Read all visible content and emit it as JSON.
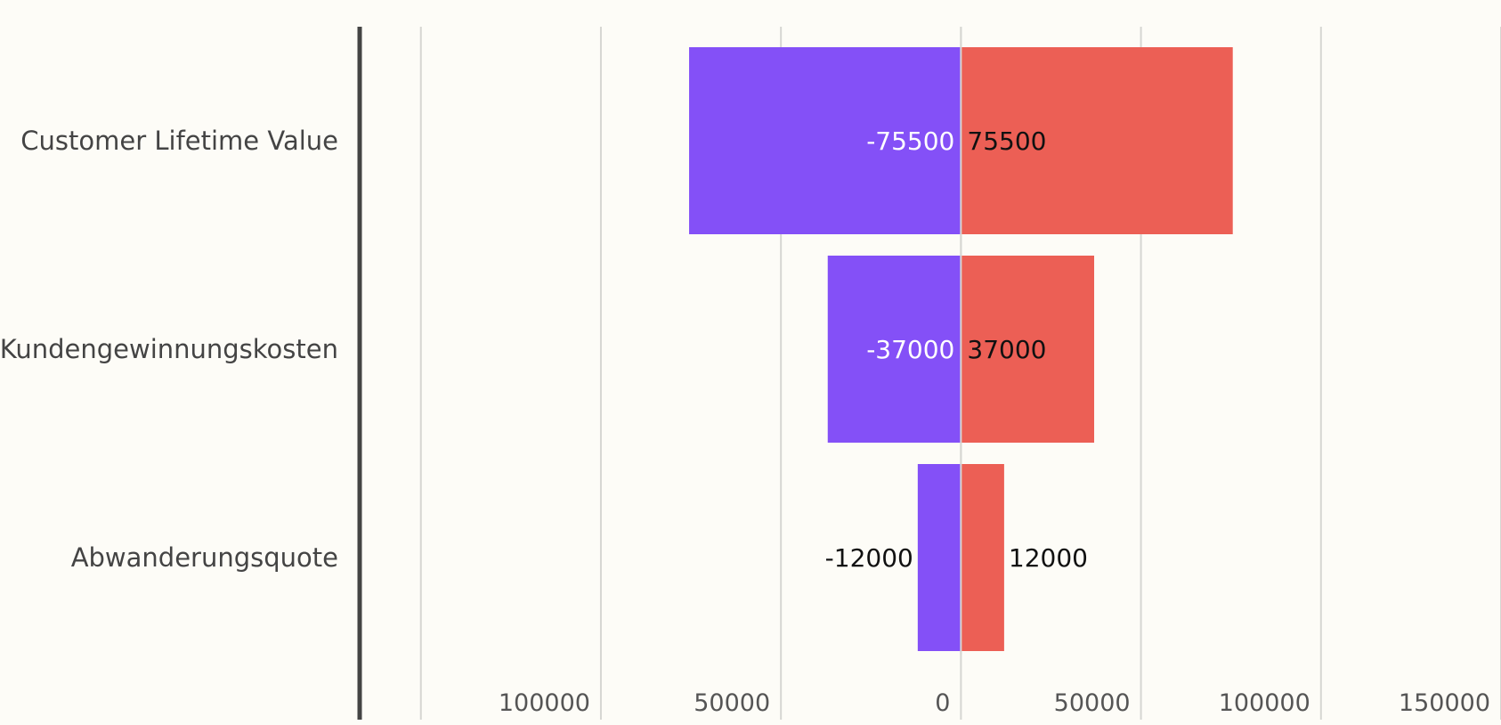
{
  "chart_data": {
    "type": "bar",
    "orientation": "horizontal",
    "layout": "diverging",
    "title": "",
    "xlabel": "",
    "ylabel": "",
    "categories": [
      "Customer Lifetime Value",
      "Kundengewinnungskosten",
      "Abwanderungsquote"
    ],
    "series": [
      {
        "color": "#8450f7",
        "values": [
          -75500,
          -37000,
          -12000
        ]
      },
      {
        "color": "#ec5f55",
        "values": [
          75500,
          37000,
          12000
        ]
      }
    ],
    "data_labels": {
      "left": [
        "-75500",
        "-37000",
        "-12000"
      ],
      "right": [
        "75500",
        "37000",
        "12000"
      ]
    },
    "xlim": [
      -167000,
      150000
    ],
    "xticks": [
      -150000,
      -100000,
      -50000,
      0,
      50000,
      100000,
      150000
    ],
    "xtick_labels": [
      "",
      "100000",
      "50000",
      "0",
      "50000",
      "100000",
      "150000"
    ],
    "grid": true,
    "legend": "none"
  }
}
